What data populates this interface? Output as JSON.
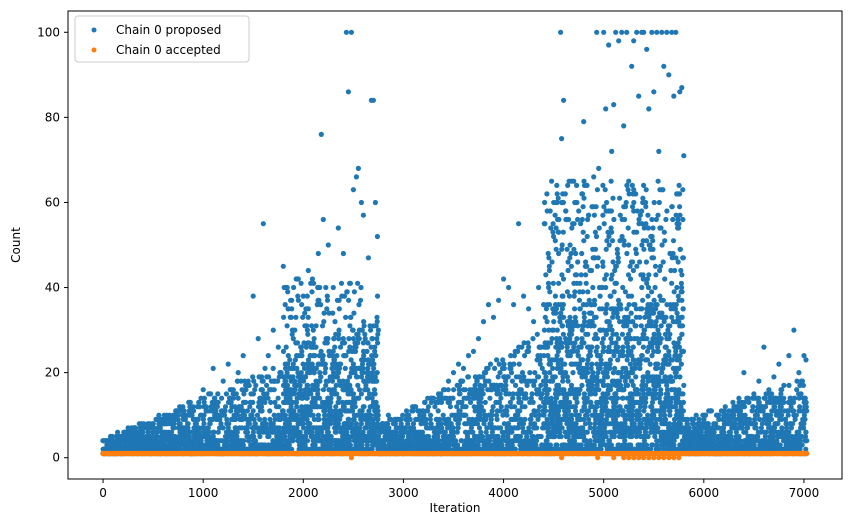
{
  "chart_data": {
    "type": "scatter",
    "xlabel": "Iteration",
    "ylabel": "Count",
    "xlim": [
      -350,
      7380
    ],
    "ylim": [
      -5,
      105
    ],
    "xticks": [
      0,
      1000,
      2000,
      3000,
      4000,
      5000,
      6000,
      7000
    ],
    "yticks": [
      0,
      20,
      40,
      60,
      80,
      100
    ],
    "legend_position": "top-left",
    "grid": false,
    "series": [
      {
        "name": "Chain 0 proposed",
        "color": "#1f77b4",
        "points": [
          [
            0,
            1
          ],
          [
            60,
            1
          ],
          [
            120,
            2
          ],
          [
            180,
            2
          ],
          [
            240,
            3
          ],
          [
            300,
            3
          ],
          [
            350,
            4
          ],
          [
            400,
            5
          ],
          [
            450,
            6
          ],
          [
            500,
            5
          ],
          [
            550,
            7
          ],
          [
            600,
            6
          ],
          [
            650,
            8
          ],
          [
            700,
            7
          ],
          [
            750,
            9
          ],
          [
            800,
            10
          ],
          [
            850,
            8
          ],
          [
            900,
            12
          ],
          [
            950,
            9
          ],
          [
            1000,
            16
          ],
          [
            1050,
            11
          ],
          [
            1100,
            21
          ],
          [
            1150,
            13
          ],
          [
            1200,
            18
          ],
          [
            1250,
            22
          ],
          [
            1300,
            15
          ],
          [
            1350,
            20
          ],
          [
            1400,
            24
          ],
          [
            1450,
            18
          ],
          [
            1500,
            38
          ],
          [
            1550,
            28
          ],
          [
            1600,
            55
          ],
          [
            1650,
            24
          ],
          [
            1700,
            30
          ],
          [
            1750,
            26
          ],
          [
            1800,
            45
          ],
          [
            1850,
            35
          ],
          [
            1900,
            28
          ],
          [
            1950,
            42
          ],
          [
            2000,
            38
          ],
          [
            2050,
            44
          ],
          [
            2100,
            30
          ],
          [
            2150,
            48
          ],
          [
            2180,
            76
          ],
          [
            2200,
            56
          ],
          [
            2250,
            50
          ],
          [
            2300,
            40
          ],
          [
            2350,
            54
          ],
          [
            2400,
            48
          ],
          [
            2430,
            100
          ],
          [
            2450,
            86
          ],
          [
            2480,
            100
          ],
          [
            2500,
            63
          ],
          [
            2530,
            66
          ],
          [
            2550,
            68
          ],
          [
            2580,
            60
          ],
          [
            2600,
            57
          ],
          [
            2650,
            47
          ],
          [
            2680,
            84
          ],
          [
            2700,
            84
          ],
          [
            2720,
            60
          ],
          [
            2740,
            52
          ],
          [
            2750,
            30
          ],
          [
            2800,
            8
          ],
          [
            2850,
            10
          ],
          [
            2900,
            6
          ],
          [
            2950,
            5
          ],
          [
            3000,
            7
          ],
          [
            3050,
            6
          ],
          [
            3100,
            8
          ],
          [
            3150,
            9
          ],
          [
            3200,
            10
          ],
          [
            3250,
            12
          ],
          [
            3300,
            14
          ],
          [
            3350,
            15
          ],
          [
            3400,
            16
          ],
          [
            3450,
            18
          ],
          [
            3500,
            20
          ],
          [
            3550,
            22
          ],
          [
            3600,
            21
          ],
          [
            3650,
            24
          ],
          [
            3700,
            25
          ],
          [
            3750,
            28
          ],
          [
            3800,
            32
          ],
          [
            3850,
            36
          ],
          [
            3900,
            33
          ],
          [
            3950,
            37
          ],
          [
            4000,
            42
          ],
          [
            4050,
            40
          ],
          [
            4100,
            36
          ],
          [
            4150,
            55
          ],
          [
            4200,
            38
          ],
          [
            4250,
            35
          ],
          [
            4300,
            32
          ],
          [
            4350,
            40
          ],
          [
            4400,
            36
          ],
          [
            4450,
            40
          ],
          [
            4480,
            65
          ],
          [
            4500,
            52
          ],
          [
            4550,
            48
          ],
          [
            4570,
            100
          ],
          [
            4580,
            75
          ],
          [
            4600,
            84
          ],
          [
            4650,
            56
          ],
          [
            4700,
            65
          ],
          [
            4750,
            58
          ],
          [
            4800,
            79
          ],
          [
            4850,
            57
          ],
          [
            4900,
            66
          ],
          [
            4930,
            100
          ],
          [
            4950,
            68
          ],
          [
            5000,
            100
          ],
          [
            5020,
            82
          ],
          [
            5050,
            97
          ],
          [
            5080,
            72
          ],
          [
            5100,
            83
          ],
          [
            5120,
            100
          ],
          [
            5150,
            98
          ],
          [
            5180,
            100
          ],
          [
            5200,
            78
          ],
          [
            5230,
            100
          ],
          [
            5250,
            65
          ],
          [
            5280,
            92
          ],
          [
            5300,
            98
          ],
          [
            5330,
            100
          ],
          [
            5350,
            85
          ],
          [
            5380,
            100
          ],
          [
            5400,
            100
          ],
          [
            5430,
            96
          ],
          [
            5450,
            82
          ],
          [
            5480,
            100
          ],
          [
            5500,
            86
          ],
          [
            5530,
            100
          ],
          [
            5550,
            72
          ],
          [
            5580,
            100
          ],
          [
            5600,
            92
          ],
          [
            5630,
            100
          ],
          [
            5650,
            90
          ],
          [
            5680,
            100
          ],
          [
            5700,
            85
          ],
          [
            5720,
            100
          ],
          [
            5740,
            62
          ],
          [
            5760,
            86
          ],
          [
            5780,
            87
          ],
          [
            5790,
            63
          ],
          [
            5800,
            71
          ],
          [
            5850,
            5
          ],
          [
            5900,
            4
          ],
          [
            5950,
            6
          ],
          [
            6000,
            5
          ],
          [
            6050,
            7
          ],
          [
            6100,
            8
          ],
          [
            6150,
            9
          ],
          [
            6200,
            10
          ],
          [
            6250,
            11
          ],
          [
            6300,
            12
          ],
          [
            6350,
            14
          ],
          [
            6400,
            20
          ],
          [
            6450,
            13
          ],
          [
            6500,
            15
          ],
          [
            6550,
            18
          ],
          [
            6600,
            26
          ],
          [
            6650,
            16
          ],
          [
            6700,
            19
          ],
          [
            6750,
            22
          ],
          [
            6800,
            17
          ],
          [
            6850,
            24
          ],
          [
            6900,
            30
          ],
          [
            6950,
            20
          ],
          [
            7000,
            24
          ],
          [
            7020,
            23
          ]
        ]
      },
      {
        "name": "Chain 0 accepted",
        "color": "#ff7f0e",
        "points": [
          [
            0,
            1
          ],
          [
            7000,
            1
          ],
          [
            2480,
            0
          ],
          [
            4580,
            0
          ],
          [
            4940,
            0
          ],
          [
            5100,
            0
          ],
          [
            5200,
            0
          ],
          [
            5250,
            0
          ],
          [
            5300,
            0
          ],
          [
            5350,
            0
          ],
          [
            5400,
            0
          ],
          [
            5450,
            0
          ],
          [
            5500,
            0
          ],
          [
            5550,
            0
          ],
          [
            5600,
            0
          ],
          [
            5650,
            0
          ],
          [
            5700,
            0
          ],
          [
            5750,
            0
          ]
        ]
      }
    ]
  }
}
